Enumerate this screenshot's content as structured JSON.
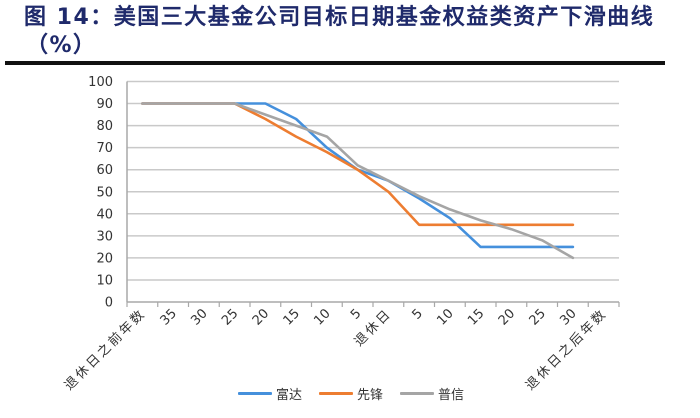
{
  "title": {
    "line1": "图 14：美国三大基金公司目标日期基金权益类资产下滑曲线",
    "line2": "（%）"
  },
  "legend": [
    {
      "label": "富达",
      "color": "#4590dc"
    },
    {
      "label": "先锋",
      "color": "#ed7d31"
    },
    {
      "label": "普信",
      "color": "#a5a5a5"
    }
  ],
  "chart_data": {
    "type": "line",
    "title": "图 14：美国三大基金公司目标日期基金权益类资产下滑曲线（%）",
    "xlabel": "",
    "ylabel": "",
    "categories": [
      "退休日之前年数",
      "35",
      "30",
      "25",
      "20",
      "15",
      "10",
      "5",
      "退休日",
      "5",
      "10",
      "15",
      "20",
      "25",
      "30",
      "退休日之后年数"
    ],
    "series": [
      {
        "name": "富达",
        "color": "#4590dc",
        "values": [
          90,
          90,
          90,
          90,
          90,
          83,
          70,
          60,
          55,
          47,
          38,
          25,
          25,
          25,
          25,
          null
        ]
      },
      {
        "name": "先锋",
        "color": "#ed7d31",
        "values": [
          90,
          90,
          90,
          90,
          83,
          75,
          68,
          60,
          50,
          35,
          35,
          35,
          35,
          35,
          35,
          null
        ]
      },
      {
        "name": "普信",
        "color": "#a5a5a5",
        "values": [
          90,
          90,
          90,
          90,
          85,
          80,
          75,
          62,
          55,
          48,
          42,
          37,
          33,
          28,
          20,
          null
        ]
      }
    ],
    "ylim": [
      0,
      100
    ],
    "yticks": [
      0,
      10,
      20,
      30,
      40,
      50,
      60,
      70,
      80,
      90,
      100
    ],
    "grid": true,
    "grid_color": "#c9c9c9",
    "axis_color": "#a8a8a8",
    "legend_position": "bottom"
  }
}
